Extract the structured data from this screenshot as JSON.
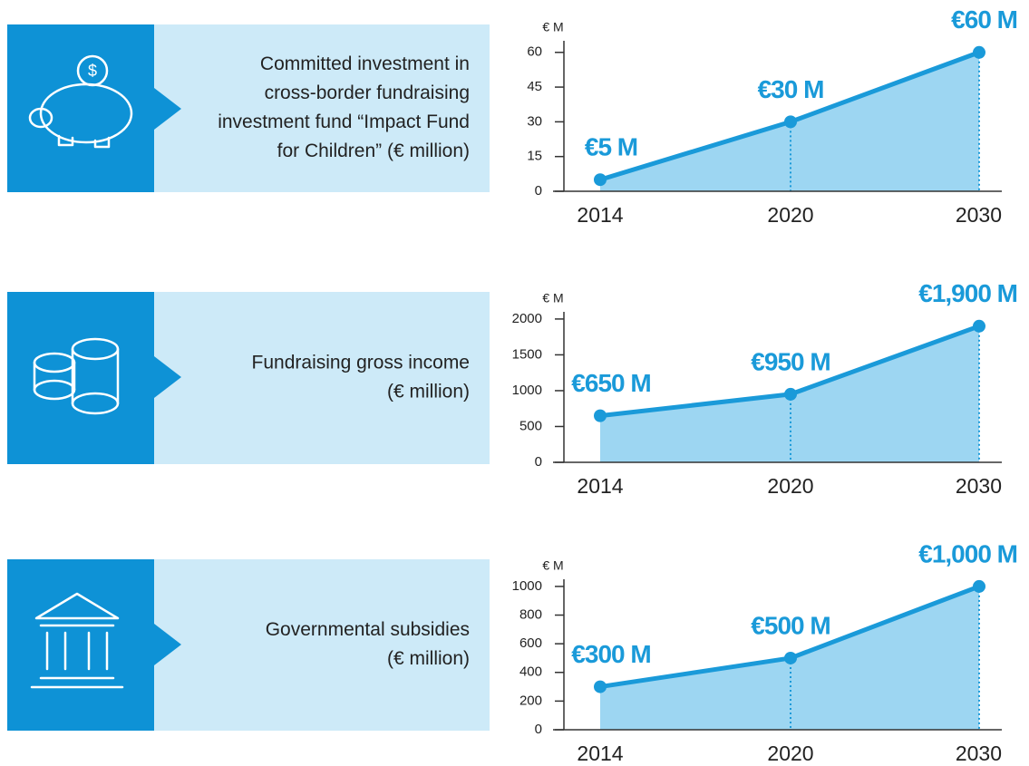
{
  "chart_data": [
    {
      "type": "area",
      "description": [
        "Committed investment in",
        "cross-border fundraising",
        "investment fund “Impact Fund",
        "for Children” (€ million)"
      ],
      "y_label": "€ M",
      "categories": [
        "2014",
        "2020",
        "2030"
      ],
      "values": [
        5,
        30,
        60
      ],
      "value_labels": [
        "€5 M",
        "€30 M",
        "€60 M"
      ],
      "ylim": [
        0,
        65
      ],
      "yticks": [
        0,
        15,
        30,
        45,
        60
      ],
      "color": "#1a9ad9",
      "fill": "#9dd6f2"
    },
    {
      "type": "area",
      "description": [
        "Fundraising gross income",
        "(€ million)"
      ],
      "y_label": "€ M",
      "categories": [
        "2014",
        "2020",
        "2030"
      ],
      "values": [
        650,
        950,
        1900
      ],
      "value_labels": [
        "€650 M",
        "€950 M",
        "€1,900 M"
      ],
      "ylim": [
        0,
        2100
      ],
      "yticks": [
        0,
        500,
        1000,
        1500,
        2000
      ],
      "color": "#1a9ad9",
      "fill": "#9dd6f2"
    },
    {
      "type": "area",
      "description": [
        "Governmental subsidies",
        "(€ million)"
      ],
      "y_label": "€ M",
      "categories": [
        "2014",
        "2020",
        "2030"
      ],
      "values": [
        300,
        500,
        1000
      ],
      "value_labels": [
        "€300 M",
        "€500 M",
        "€1,000 M"
      ],
      "ylim": [
        0,
        1050
      ],
      "yticks": [
        0,
        200,
        400,
        600,
        800,
        1000
      ],
      "color": "#1a9ad9",
      "fill": "#9dd6f2"
    }
  ]
}
